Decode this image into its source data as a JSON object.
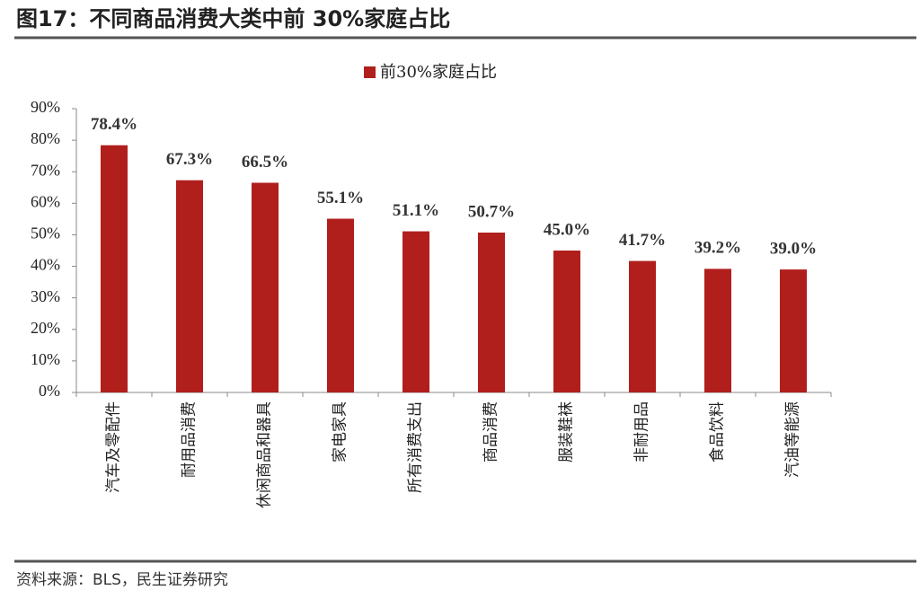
{
  "chart_data": {
    "type": "bar",
    "title": "图17：不同商品消费大类中前 30%家庭占比",
    "source": "资料来源：BLS，民生证券研究",
    "categories": [
      "汽车及零配件",
      "耐用品消费",
      "休闲商品和器具",
      "家电家具",
      "所有消费支出",
      "商品消费",
      "服装鞋袜",
      "非耐用品",
      "食品饮料",
      "汽油等能源"
    ],
    "series": [
      {
        "name": "前30%家庭占比",
        "color": "#b01f1c",
        "values": [
          78.4,
          67.3,
          66.5,
          55.1,
          51.1,
          50.7,
          45.0,
          41.7,
          39.2,
          39.0
        ],
        "value_labels": [
          "78.4%",
          "67.3%",
          "66.5%",
          "55.1%",
          "51.1%",
          "50.7%",
          "45.0%",
          "41.7%",
          "39.2%",
          "39.0%"
        ]
      }
    ],
    "ylim": [
      0,
      90
    ],
    "yticks": [
      {
        "value": 0,
        "label": "0%"
      },
      {
        "value": 10,
        "label": "10%"
      },
      {
        "value": 20,
        "label": "20%"
      },
      {
        "value": 30,
        "label": "30%"
      },
      {
        "value": 40,
        "label": "40%"
      },
      {
        "value": 50,
        "label": "50%"
      },
      {
        "value": 60,
        "label": "60%"
      },
      {
        "value": 70,
        "label": "70%"
      },
      {
        "value": 80,
        "label": "80%"
      },
      {
        "value": 90,
        "label": "90%"
      }
    ],
    "legend": "top",
    "grid": false
  }
}
